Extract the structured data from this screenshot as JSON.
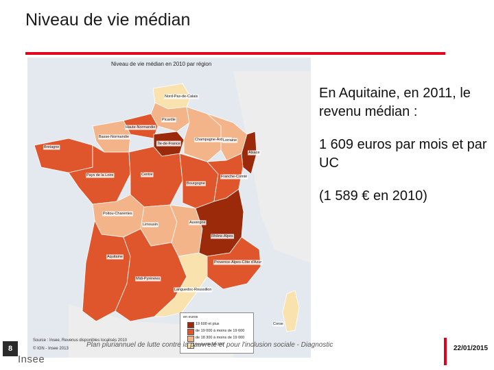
{
  "slide": {
    "title": "Niveau de vie médian",
    "page_number": "8",
    "footer_text": "Plan pluriannuel de lutte contre la pauvreté et pour l'inclusion sociale - Diagnostic",
    "date": "22/01/2015",
    "logo_text": "Insee"
  },
  "map": {
    "title": "Niveau de vie médian en 2010 par région",
    "source": "Source : Insee, Revenus disponibles localisés 2010",
    "copyright": "© IGN - Insee 2013",
    "legend": {
      "title": "en euros",
      "items": [
        {
          "label": "19 600 et plus",
          "color": "#9b2a0a"
        },
        {
          "label": "de 19 000 à moins de 19 600",
          "color": "#e0562c"
        },
        {
          "label": "de 18 300 à moins de 19 000",
          "color": "#f4b48a"
        },
        {
          "label": "moins de 18 300",
          "color": "#fae2ae"
        }
      ]
    },
    "regions": [
      {
        "name": "Nord-Pas-de-Calais",
        "color": "#fae2ae"
      },
      {
        "name": "Picardie",
        "color": "#f4b48a"
      },
      {
        "name": "Haute-Normandie",
        "color": "#e0562c"
      },
      {
        "name": "Basse-Normandie",
        "color": "#f4b48a"
      },
      {
        "name": "Île-de-France",
        "color": "#9b2a0a"
      },
      {
        "name": "Champagne-Ardenne",
        "color": "#f4b48a"
      },
      {
        "name": "Lorraine",
        "color": "#f4b48a"
      },
      {
        "name": "Alsace",
        "color": "#9b2a0a"
      },
      {
        "name": "Bretagne",
        "color": "#e0562c"
      },
      {
        "name": "Pays de la Loire",
        "color": "#e0562c"
      },
      {
        "name": "Centre",
        "color": "#e0562c"
      },
      {
        "name": "Bourgogne",
        "color": "#e0562c"
      },
      {
        "name": "Franche-Comté",
        "color": "#e0562c"
      },
      {
        "name": "Poitou-Charentes",
        "color": "#f4b48a"
      },
      {
        "name": "Limousin",
        "color": "#f4b48a"
      },
      {
        "name": "Auvergne",
        "color": "#f4b48a"
      },
      {
        "name": "Rhône-Alpes",
        "color": "#9b2a0a"
      },
      {
        "name": "Aquitaine",
        "color": "#e0562c"
      },
      {
        "name": "Midi-Pyrénées",
        "color": "#e0562c"
      },
      {
        "name": "Languedoc-Roussillon",
        "color": "#fae2ae"
      },
      {
        "name": "Provence-Alpes-Côte d'Azur",
        "color": "#e0562c"
      },
      {
        "name": "Corse",
        "color": "#fae2ae"
      }
    ]
  },
  "side_text": {
    "line1": "En Aquitaine, en 2011, le revenu médian :",
    "line2": "1 609 euros par mois et par UC",
    "line3": "(1 589 € en 2010)"
  }
}
